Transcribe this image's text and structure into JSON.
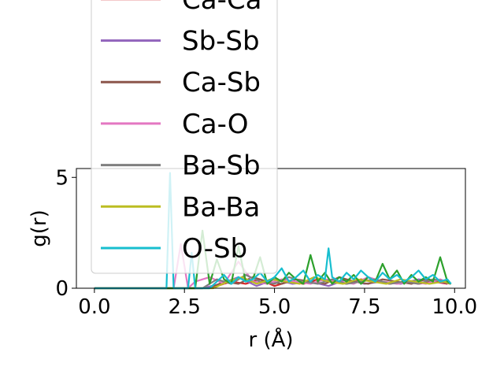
{
  "chart_data": {
    "type": "line",
    "xlabel": "r (Å)",
    "ylabel": "g(r)",
    "xlim": [
      -0.5,
      10.3
    ],
    "ylim": [
      0,
      5.4
    ],
    "xticks": [
      0.0,
      2.5,
      5.0,
      7.5,
      10.0
    ],
    "xtick_labels": [
      "0.0",
      "2.5",
      "5.0",
      "7.5",
      "10.0"
    ],
    "yticks": [
      0,
      5
    ],
    "ytick_labels": [
      "0",
      "5"
    ],
    "legend_position": "upper-left",
    "series": [
      {
        "name": "Ca-Ca",
        "color": "#d62728",
        "x": [
          0,
          1,
          2,
          3.0,
          3.4,
          3.8,
          4.2,
          4.6,
          5.0,
          5.4,
          5.8,
          6.2,
          6.6,
          7.0,
          7.4,
          7.8,
          8.2,
          8.6,
          9.0,
          9.4,
          9.8
        ],
        "y": [
          0,
          0,
          0,
          0,
          0.1,
          0.3,
          0.2,
          0.4,
          0.1,
          0.3,
          0.2,
          0.4,
          0.3,
          0.2,
          0.4,
          0.3,
          0.2,
          0.3,
          0.2,
          0.3,
          0.2
        ]
      },
      {
        "name": "Sb-Sb",
        "color": "#9467bd",
        "x": [
          0,
          1,
          2,
          3.0,
          3.5,
          4.0,
          4.5,
          5.0,
          5.5,
          6.0,
          6.5,
          7.0,
          7.5,
          8.0,
          8.5,
          9.0,
          9.5,
          9.9
        ],
        "y": [
          0,
          0,
          0,
          0,
          0.2,
          0.5,
          0.1,
          0.4,
          0.2,
          0.3,
          0.1,
          0.4,
          0.2,
          0.3,
          0.2,
          0.4,
          0.3,
          0.2
        ]
      },
      {
        "name": "Ca-Sb",
        "color": "#8c564b",
        "x": [
          0,
          1,
          2,
          3.2,
          3.6,
          4.0,
          4.4,
          4.8,
          5.2,
          5.6,
          6.0,
          6.4,
          6.8,
          7.2,
          7.6,
          8.0,
          8.4,
          8.8,
          9.2,
          9.6,
          9.9
        ],
        "y": [
          0,
          0,
          0,
          0,
          0.3,
          0.2,
          0.5,
          0.3,
          0.2,
          0.4,
          0.3,
          0.2,
          0.5,
          0.3,
          0.2,
          0.4,
          0.3,
          0.2,
          0.4,
          0.3,
          0.2
        ]
      },
      {
        "name": "Ca-O",
        "color": "#e377c2",
        "x": [
          0,
          1,
          2,
          2.2,
          2.4,
          2.6,
          2.8,
          3.2,
          3.6,
          4.0,
          4.4,
          4.8,
          5.2,
          5.6,
          6.0,
          6.4,
          6.8,
          7.2,
          7.6,
          8.0,
          8.4,
          8.8,
          9.2,
          9.6,
          9.9
        ],
        "y": [
          0,
          0,
          0,
          0,
          2.0,
          0,
          0.3,
          0.5,
          0.2,
          1.2,
          0.3,
          0.2,
          0.4,
          0.3,
          0.2,
          0.4,
          0.3,
          0.2,
          0.5,
          0.3,
          0.2,
          0.3,
          0.2,
          0.4,
          0.2
        ]
      },
      {
        "name": "Ba-Sb",
        "color": "#7f7f7f",
        "x": [
          0,
          1,
          2,
          3.0,
          3.4,
          3.8,
          4.2,
          4.6,
          5.0,
          5.4,
          5.8,
          6.2,
          6.6,
          7.0,
          7.4,
          7.8,
          8.2,
          8.6,
          9.0,
          9.4,
          9.8
        ],
        "y": [
          0,
          0,
          0,
          0,
          0.4,
          0.2,
          0.6,
          0.3,
          0.2,
          0.5,
          0.3,
          0.2,
          0.4,
          0.2,
          0.3,
          0.4,
          0.2,
          0.3,
          0.2,
          0.4,
          0.3
        ]
      },
      {
        "name": "Ba-Ba",
        "color": "#bcbd22",
        "x": [
          0,
          1,
          2,
          3.3,
          3.7,
          4.1,
          4.5,
          4.9,
          5.3,
          5.7,
          6.1,
          6.5,
          6.9,
          7.3,
          7.7,
          8.1,
          8.5,
          8.9,
          9.3,
          9.7,
          9.9
        ],
        "y": [
          0,
          0,
          0,
          0,
          0.3,
          0.5,
          0.2,
          0.4,
          0.3,
          0.2,
          0.5,
          0.3,
          0.2,
          0.4,
          0.3,
          0.2,
          0.4,
          0.3,
          0.2,
          0.3,
          0.2
        ]
      },
      {
        "name": "",
        "color": "#2ca02c",
        "x": [
          0,
          1,
          2,
          2.8,
          3.0,
          3.2,
          3.4,
          3.6,
          3.8,
          4.0,
          4.2,
          4.4,
          4.6,
          4.8,
          5.0,
          5.2,
          5.4,
          5.6,
          5.8,
          6.0,
          6.2,
          6.4,
          6.6,
          6.8,
          7.0,
          7.2,
          7.4,
          7.6,
          7.8,
          8.0,
          8.2,
          8.4,
          8.6,
          8.8,
          9.0,
          9.2,
          9.4,
          9.6,
          9.8,
          9.9
        ],
        "y": [
          0,
          0,
          0,
          0,
          2.6,
          0.2,
          1.3,
          0.4,
          0.2,
          1.9,
          0.3,
          0.4,
          1.4,
          0.2,
          0.5,
          0.3,
          0.7,
          0.4,
          0.2,
          1.5,
          0.3,
          0.7,
          0.2,
          0.5,
          0.3,
          0.6,
          0.2,
          0.5,
          0.3,
          1.1,
          0.4,
          0.8,
          0.2,
          0.6,
          0.3,
          0.5,
          0.3,
          1.4,
          0.3,
          0.2
        ]
      },
      {
        "name": "O-Sb",
        "color": "#17becf",
        "x": [
          0,
          1,
          1.9,
          2.0,
          2.1,
          2.2,
          2.4,
          2.6,
          2.7,
          2.8,
          3.0,
          3.2,
          3.4,
          3.6,
          3.8,
          4.0,
          4.2,
          4.4,
          4.6,
          4.8,
          5.0,
          5.2,
          5.4,
          5.6,
          5.8,
          6.0,
          6.2,
          6.4,
          6.5,
          6.6,
          6.8,
          7.0,
          7.2,
          7.4,
          7.6,
          7.8,
          8.0,
          8.2,
          8.4,
          8.6,
          8.8,
          9.0,
          9.2,
          9.4,
          9.6,
          9.8,
          9.9
        ],
        "y": [
          0,
          0,
          0,
          0,
          5.2,
          0,
          0,
          0,
          1.6,
          0,
          0,
          0,
          0.3,
          0.6,
          0.2,
          0.5,
          0.3,
          0.4,
          0.7,
          0.3,
          0.5,
          0.9,
          0.3,
          0.5,
          0.8,
          0.3,
          0.6,
          0.4,
          1.8,
          0.5,
          0.3,
          0.7,
          0.4,
          0.8,
          0.5,
          0.3,
          0.7,
          0.4,
          0.6,
          0.3,
          0.5,
          0.8,
          0.4,
          0.6,
          0.3,
          0.4,
          0.2
        ]
      }
    ]
  }
}
